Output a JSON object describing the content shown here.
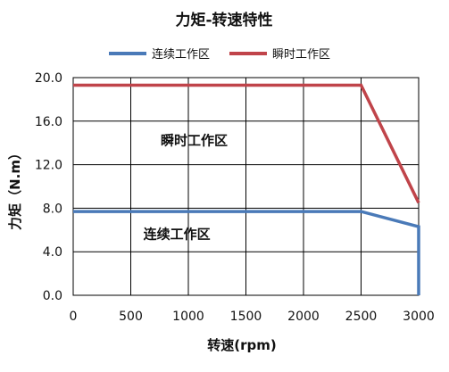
{
  "chart_data": {
    "type": "line",
    "title": "力矩-转速特性",
    "xlabel": "转速(rpm)",
    "ylabel": "力矩（N.m）",
    "xlim": [
      0,
      3000
    ],
    "ylim": [
      0,
      20
    ],
    "xticks": [
      0,
      500,
      1000,
      1500,
      2000,
      2500,
      3000
    ],
    "yticks": [
      0,
      4,
      8,
      12,
      16,
      20
    ],
    "xtick_labels": [
      "0",
      "500",
      "1000",
      "1500",
      "2000",
      "2500",
      "3000"
    ],
    "ytick_labels": [
      "0.0",
      "4.0",
      "8.0",
      "12.0",
      "16.0",
      "20.0"
    ],
    "grid": true,
    "legend_position": "top",
    "series": [
      {
        "name": "连续工作区",
        "color": "#4a7ab8",
        "points": [
          [
            0,
            7.7
          ],
          [
            2500,
            7.7
          ],
          [
            3000,
            6.3
          ],
          [
            3000,
            0
          ]
        ]
      },
      {
        "name": "瞬时工作区",
        "color": "#c0444a",
        "points": [
          [
            0,
            19.3
          ],
          [
            2500,
            19.3
          ],
          [
            3000,
            8.5
          ]
        ]
      }
    ],
    "annotations": [
      {
        "text": "瞬时工作区",
        "x": 1050,
        "y": 13.8
      },
      {
        "text": "连续工作区",
        "x": 900,
        "y": 5.2
      }
    ]
  }
}
